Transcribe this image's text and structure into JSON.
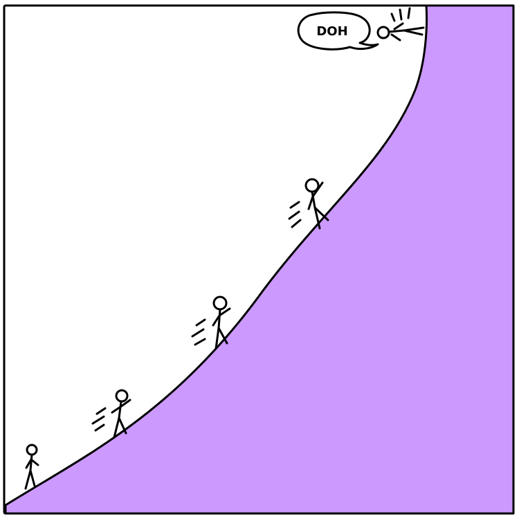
{
  "panel": {
    "speech_bubble": {
      "text": "DOH"
    },
    "colors": {
      "hill_fill": "#CC99FF",
      "ink": "#000000",
      "background": "#FFFFFF"
    },
    "characters": [
      {
        "name": "stick-figure-walking"
      },
      {
        "name": "stick-figure-running"
      },
      {
        "name": "stick-figure-running"
      },
      {
        "name": "stick-figure-running"
      },
      {
        "name": "stick-figure-fallen-over-edge"
      }
    ]
  }
}
